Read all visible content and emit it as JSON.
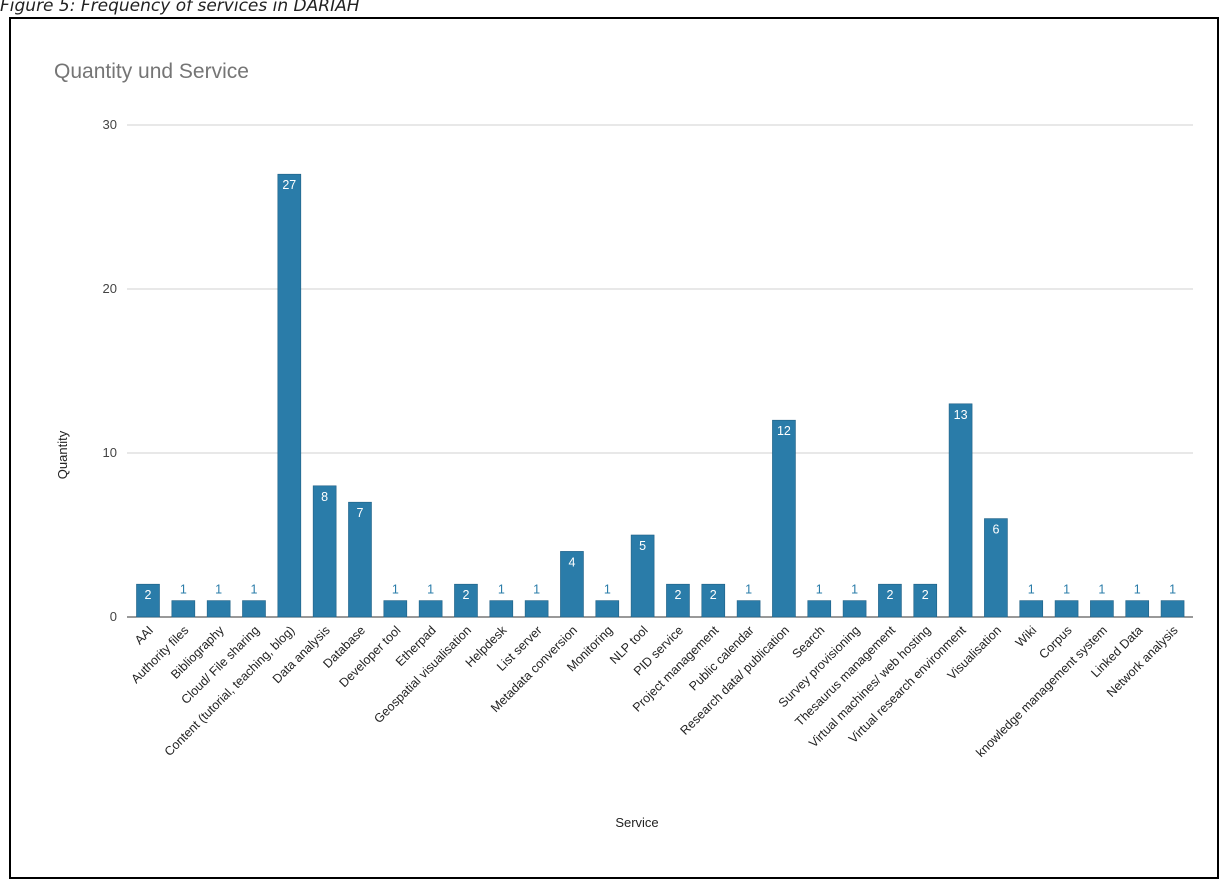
{
  "caption": "Figure 5: Frequency of services in DARIAH",
  "chart_data": {
    "type": "bar",
    "title": "Quantity und Service",
    "xlabel": "Service",
    "ylabel": "Quantity",
    "ylim": [
      0,
      30
    ],
    "yticks": [
      0,
      10,
      20,
      30
    ],
    "grid": true,
    "bar_color": "#2a7ca9",
    "categories": [
      "AAI",
      "Authority files",
      "Bibliography",
      "Cloud/ File sharing",
      "Content (tutorial, teaching, blog)",
      "Data analysis",
      "Database",
      "Developer tool",
      "Etherpad",
      "Geospatial visualisation",
      "Helpdesk",
      "List server",
      "Metadata conversion",
      "Monitoring",
      "NLP tool",
      "PID service",
      "Project management",
      "Public calendar",
      "Research data/ publication",
      "Search",
      "Survey provisioning",
      "Thesaurus management",
      "Virtual machines/ web hosting",
      "Virtual research environment",
      "Visualisation",
      "Wiki",
      "Corpus",
      "knowledge management system",
      "Linked Data",
      "Network analysis"
    ],
    "values": [
      2,
      1,
      1,
      1,
      27,
      8,
      7,
      1,
      1,
      2,
      1,
      1,
      4,
      1,
      5,
      2,
      2,
      1,
      12,
      1,
      1,
      2,
      2,
      13,
      6,
      1,
      1,
      1,
      1,
      1
    ]
  }
}
